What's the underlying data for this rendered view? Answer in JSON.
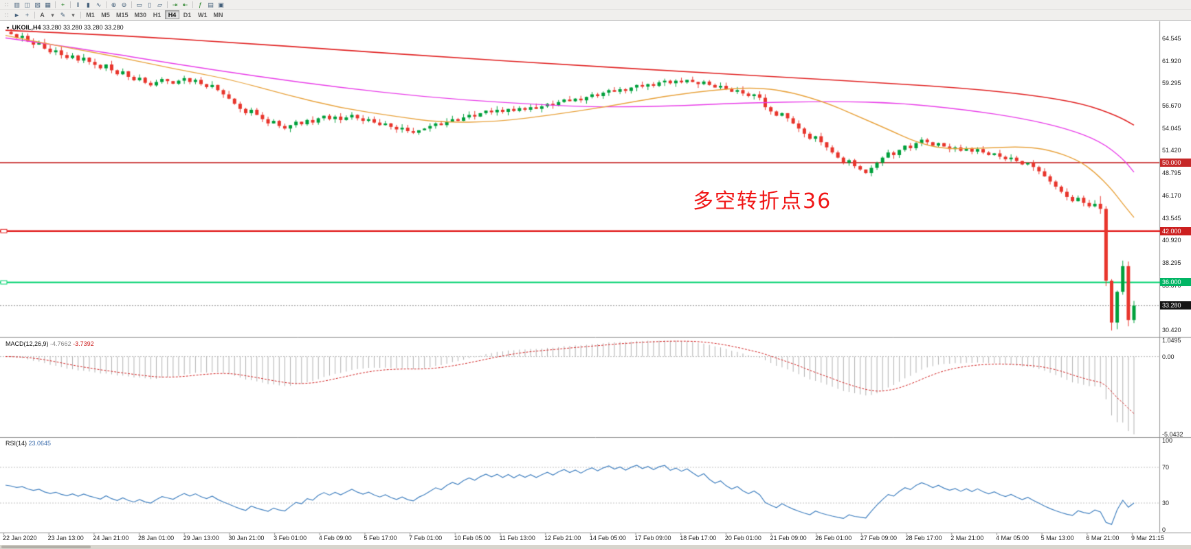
{
  "toolbar": {
    "row1": [
      {
        "name": "toolbar-grip",
        "glyph": "∷",
        "color": "#9a9a9a"
      },
      {
        "name": "market-watch-icon",
        "glyph": "▥"
      },
      {
        "name": "data-window-icon",
        "glyph": "◫"
      },
      {
        "name": "navigator-icon",
        "glyph": "▧"
      },
      {
        "name": "terminal-icon",
        "glyph": "▦"
      },
      {
        "sep": true
      },
      {
        "name": "new-order-icon",
        "glyph": "+",
        "color": "#1e7e1e"
      },
      {
        "sep": true
      },
      {
        "name": "bar-chart-icon",
        "glyph": "‖"
      },
      {
        "name": "candlestick-chart-icon",
        "glyph": "▮"
      },
      {
        "name": "line-chart-icon",
        "glyph": "∿"
      },
      {
        "sep": true
      },
      {
        "name": "zoom-in-icon",
        "glyph": "⊕"
      },
      {
        "name": "zoom-out-icon",
        "glyph": "⊖"
      },
      {
        "sep": true
      },
      {
        "name": "tile-horizontal-icon",
        "glyph": "▭"
      },
      {
        "name": "tile-vertical-icon",
        "glyph": "▯"
      },
      {
        "name": "cascade-windows-icon",
        "glyph": "▱"
      },
      {
        "sep": true
      },
      {
        "name": "auto-scroll-icon",
        "glyph": "⇥",
        "color": "#1e7e1e"
      },
      {
        "name": "chart-shift-icon",
        "glyph": "⇤",
        "color": "#1e7e1e"
      },
      {
        "sep": true
      },
      {
        "name": "indicators-icon",
        "glyph": "ƒ",
        "color": "#1e7e1e"
      },
      {
        "name": "templates-icon",
        "glyph": "▤"
      },
      {
        "name": "full-screen-icon",
        "glyph": "▣"
      }
    ],
    "row2_left": [
      {
        "name": "toolbar-grip",
        "glyph": "∷",
        "color": "#9a9a9a"
      },
      {
        "name": "cursor-tool-icon",
        "glyph": "►"
      },
      {
        "name": "crosshair-tool-icon",
        "glyph": "+"
      },
      {
        "sep": true
      },
      {
        "name": "text-tool-button",
        "glyph": "A",
        "color": "#222222"
      },
      {
        "name": "text-tool-dropdown-icon",
        "glyph": "▾",
        "color": "#666666"
      },
      {
        "name": "draw-tools-icon",
        "glyph": "✎"
      },
      {
        "name": "draw-tools-dropdown-icon",
        "glyph": "▾",
        "color": "#666666"
      }
    ],
    "timeframes": {
      "items": [
        "M1",
        "M5",
        "M15",
        "M30",
        "H1",
        "H4",
        "D1",
        "W1",
        "MN"
      ],
      "active": "H4"
    }
  },
  "chart_header": {
    "symbol_period": "UKOIL,H4",
    "quote": "33.280 33.280 33.280 33.280"
  },
  "annotation": {
    "text": "多空转折点36",
    "color": "#f01616"
  },
  "price_axis": {
    "values": [
      64.545,
      61.92,
      59.295,
      56.67,
      54.045,
      51.42,
      48.795,
      46.17,
      43.545,
      40.92,
      38.295,
      35.67,
      33.045,
      30.42
    ]
  },
  "levels": [
    {
      "value": 50.0,
      "label": "50.000",
      "color": "#c62828",
      "chip": "#c62828",
      "width": 1.6,
      "full_width": false,
      "marker": false
    },
    {
      "value": 42.0,
      "label": "42.000",
      "color": "#e01818",
      "chip": "#cc1f1f",
      "width": 2.6,
      "full_width": true,
      "marker": true
    },
    {
      "value": 36.0,
      "label": "36.000",
      "color": "#00d26e",
      "chip": "#00b564",
      "width": 2,
      "full_width": true,
      "marker": true
    }
  ],
  "current_price": {
    "value": 33.28,
    "label": "33.280",
    "chip": "#141414"
  },
  "macd": {
    "name": "MACD(12,26,9)",
    "value1": "-4.7662",
    "value2": "-3.7392",
    "axis": [
      {
        "v": 1.0495,
        "label": "1.0495"
      },
      {
        "v": 0,
        "label": "0.00"
      },
      {
        "v": -5.0432,
        "label": "-5.0432"
      }
    ],
    "range": [
      1.0495,
      -5.0432
    ],
    "histogram_color": "#b0b0b0",
    "signal_color": "#d02020"
  },
  "rsi": {
    "name": "RSI(14)",
    "value": "23.0645",
    "axis": [
      {
        "v": 100,
        "label": "100"
      },
      {
        "v": 70,
        "label": "70"
      },
      {
        "v": 30,
        "label": "30"
      },
      {
        "v": 0,
        "label": "0"
      }
    ],
    "levels": [
      70,
      30
    ],
    "line_color": "#3f7fbf"
  },
  "time_axis": {
    "labels": [
      "22 Jan 2020",
      "23 Jan 13:00",
      "24 Jan 21:00",
      "28 Jan 01:00",
      "29 Jan 13:00",
      "30 Jan 21:00",
      "3 Feb 01:00",
      "4 Feb 09:00",
      "5 Feb 17:00",
      "7 Feb 01:00",
      "10 Feb 05:00",
      "11 Feb 13:00",
      "12 Feb 21:00",
      "14 Feb 05:00",
      "17 Feb 09:00",
      "18 Feb 17:00",
      "20 Feb 01:00",
      "21 Feb 09:00",
      "26 Feb 01:00",
      "27 Feb 09:00",
      "28 Feb 17:00",
      "2 Mar 21:00",
      "4 Mar 05:00",
      "5 Mar 13:00",
      "6 Mar 21:00",
      "9 Mar 21:15"
    ]
  },
  "chart_data": {
    "type": "candlestick",
    "symbol": "UKOIL",
    "period": "H4",
    "up_color": "#00a03c",
    "down_color": "#e8352c",
    "closes": [
      65.3,
      65.05,
      64.62,
      64.85,
      64.2,
      63.82,
      64.05,
      63.35,
      62.92,
      63.15,
      62.6,
      62.25,
      62.55,
      61.95,
      62.3,
      61.8,
      61.45,
      61.05,
      61.5,
      60.82,
      60.35,
      60.7,
      60.05,
      59.65,
      59.95,
      59.35,
      59.05,
      59.45,
      59.8,
      59.55,
      59.25,
      59.6,
      59.9,
      59.45,
      59.7,
      59.2,
      58.85,
      59.1,
      58.5,
      58.0,
      57.5,
      56.9,
      56.3,
      55.8,
      56.2,
      55.6,
      55.1,
      54.6,
      54.9,
      54.3,
      54.0,
      54.4,
      54.8,
      54.5,
      55.0,
      54.7,
      55.2,
      55.5,
      55.1,
      55.4,
      55.0,
      55.3,
      55.6,
      55.2,
      54.9,
      55.1,
      54.7,
      54.4,
      54.6,
      54.2,
      53.9,
      54.1,
      53.7,
      53.5,
      53.8,
      54.0,
      54.3,
      54.6,
      54.4,
      54.8,
      55.1,
      54.9,
      55.3,
      55.6,
      55.4,
      55.8,
      56.1,
      55.9,
      56.2,
      55.95,
      56.3,
      56.05,
      56.4,
      56.2,
      56.5,
      56.3,
      56.6,
      56.9,
      56.7,
      57.1,
      57.4,
      57.2,
      57.5,
      57.3,
      57.7,
      58.0,
      57.8,
      58.2,
      58.5,
      58.3,
      58.6,
      58.4,
      58.8,
      59.1,
      58.9,
      59.2,
      59.0,
      59.4,
      59.6,
      59.3,
      59.6,
      59.4,
      59.7,
      59.45,
      59.2,
      59.5,
      59.1,
      58.8,
      59.0,
      58.6,
      58.3,
      58.5,
      58.1,
      57.8,
      58.0,
      57.6,
      56.5,
      56.0,
      55.5,
      55.8,
      55.2,
      54.6,
      54.0,
      53.4,
      52.8,
      53.1,
      52.4,
      51.8,
      51.2,
      50.6,
      50.0,
      50.3,
      49.6,
      49.2,
      48.8,
      49.4,
      50.0,
      50.6,
      51.2,
      50.9,
      51.5,
      52.0,
      51.7,
      52.3,
      52.7,
      52.4,
      52.0,
      52.3,
      51.9,
      51.6,
      51.8,
      51.4,
      51.7,
      51.3,
      51.6,
      51.2,
      50.9,
      51.1,
      50.7,
      50.4,
      50.6,
      50.2,
      49.8,
      50.0,
      49.5,
      49.0,
      48.4,
      47.8,
      47.2,
      46.6,
      46.0,
      45.5,
      45.9,
      45.3,
      44.9,
      45.2,
      44.6,
      36.2,
      31.3,
      34.9,
      37.9,
      31.6,
      33.28
    ],
    "ma_lines": [
      {
        "name": "ma-slow-red",
        "color": "#e02020",
        "width": 1.6,
        "points": [
          [
            0,
            65.5
          ],
          [
            20,
            64.9
          ],
          [
            40,
            64.1
          ],
          [
            60,
            63.2
          ],
          [
            80,
            62.3
          ],
          [
            100,
            61.5
          ],
          [
            120,
            60.7
          ],
          [
            140,
            60.0
          ],
          [
            158,
            59.3
          ],
          [
            172,
            58.7
          ],
          [
            184,
            57.9
          ],
          [
            193,
            56.9
          ],
          [
            199,
            55.5
          ],
          [
            202,
            54.4
          ]
        ]
      },
      {
        "name": "ma-mid-magenta",
        "color": "#e83ce8",
        "width": 1.4,
        "points": [
          [
            0,
            64.6
          ],
          [
            15,
            63.2
          ],
          [
            30,
            61.6
          ],
          [
            45,
            60.1
          ],
          [
            60,
            58.8
          ],
          [
            75,
            57.7
          ],
          [
            90,
            57.0
          ],
          [
            105,
            56.5
          ],
          [
            118,
            56.6
          ],
          [
            132,
            57.0
          ],
          [
            148,
            57.2
          ],
          [
            160,
            57.0
          ],
          [
            172,
            56.2
          ],
          [
            182,
            55.2
          ],
          [
            190,
            54.0
          ],
          [
            196,
            52.5
          ],
          [
            200,
            50.5
          ],
          [
            202,
            48.9
          ]
        ]
      },
      {
        "name": "ma-fast-orange",
        "color": "#e8a23c",
        "width": 1.4,
        "points": [
          [
            0,
            64.9
          ],
          [
            10,
            63.6
          ],
          [
            20,
            62.4
          ],
          [
            30,
            61.0
          ],
          [
            40,
            59.8
          ],
          [
            50,
            58.0
          ],
          [
            60,
            56.4
          ],
          [
            70,
            55.4
          ],
          [
            78,
            54.7
          ],
          [
            88,
            54.8
          ],
          [
            98,
            55.6
          ],
          [
            108,
            56.6
          ],
          [
            118,
            57.8
          ],
          [
            128,
            58.6
          ],
          [
            135,
            58.8
          ],
          [
            141,
            58.2
          ],
          [
            147,
            57.0
          ],
          [
            152,
            55.6
          ],
          [
            158,
            53.9
          ],
          [
            163,
            52.4
          ],
          [
            168,
            51.6
          ],
          [
            175,
            51.7
          ],
          [
            182,
            51.9
          ],
          [
            187,
            51.5
          ],
          [
            192,
            50.3
          ],
          [
            195,
            48.9
          ],
          [
            198,
            46.9
          ],
          [
            200,
            45.2
          ],
          [
            202,
            43.6
          ]
        ]
      }
    ],
    "macd_params": [
      12,
      26,
      9
    ],
    "rsi_period": 14
  }
}
